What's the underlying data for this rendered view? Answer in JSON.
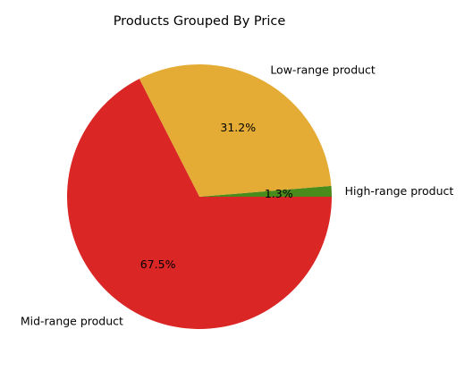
{
  "chart_data": {
    "type": "pie",
    "title": "Products Grouped By Price",
    "start_angle_deg": 0,
    "direction": "counterclockwise",
    "slices": [
      {
        "label": "High-range product",
        "value": 1.3,
        "pct_label": "1.3%",
        "color": "#4a8c1c"
      },
      {
        "label": "Low-range product",
        "value": 31.2,
        "pct_label": "31.2%",
        "color": "#e4ac35"
      },
      {
        "label": "Mid-range product",
        "value": 67.5,
        "pct_label": "67.5%",
        "color": "#da2624"
      }
    ]
  }
}
